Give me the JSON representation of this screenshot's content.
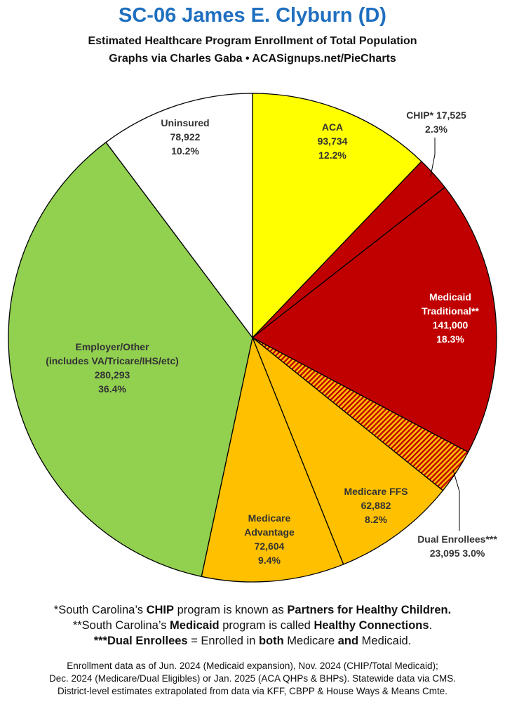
{
  "header": {
    "title": "SC-06 James E. Clyburn (D)",
    "subtitle1": "Estimated Healthcare Program Enrollment of Total Population",
    "subtitle2": "Graphs via Charles Gaba  •  ACASignups.net/PieCharts"
  },
  "chart_data": {
    "type": "pie",
    "title": "SC-06 James E. Clyburn (D)",
    "slices": [
      {
        "label": "ACA",
        "value": 93734,
        "percent": "12.2%",
        "value_text": "93,734",
        "color": "#ffff00",
        "label_color": "#333333"
      },
      {
        "label": "CHIP* 17,525",
        "value": 17525,
        "percent": "2.3%",
        "value_text": "17,525",
        "color": "#c00000",
        "label_color": "#333333"
      },
      {
        "label": "Medicaid Traditional**",
        "value": 141000,
        "percent": "18.3%",
        "value_text": "141,000",
        "color": "#c00000",
        "label_color": "#ffffff"
      },
      {
        "label": "Dual Enrollees***",
        "value": 23095,
        "percent": "3.0%",
        "value_text": "23,095",
        "color": "hatched",
        "label_color": "#333333"
      },
      {
        "label": "Medicare FFS",
        "value": 62882,
        "percent": "8.2%",
        "value_text": "62,882",
        "color": "#ffc000",
        "label_color": "#333333"
      },
      {
        "label": "Medicare Advantage",
        "value": 72604,
        "percent": "9.4%",
        "value_text": "72,604",
        "color": "#ffc000",
        "label_color": "#333333"
      },
      {
        "label": "Employer/Other (includes VA/Tricare/IHS/etc)",
        "value": 280293,
        "percent": "36.4%",
        "value_text": "280,293",
        "color": "#92d050",
        "label_color": "#333333"
      },
      {
        "label": "Uninsured",
        "value": 78922,
        "percent": "10.2%",
        "value_text": "78,922",
        "color": "#ffffff",
        "label_color": "#333333"
      }
    ],
    "label_lines": {
      "aca": [
        "ACA",
        "93,734",
        "12.2%"
      ],
      "chip": [
        "CHIP* 17,525",
        "2.3%"
      ],
      "medicaid": [
        "Medicaid",
        "Traditional**",
        "141,000",
        "18.3%"
      ],
      "dual": [
        "Dual Enrollees***",
        "23,095 3.0%"
      ],
      "ffs": [
        "Medicare FFS",
        "62,882",
        "8.2%"
      ],
      "adv": [
        "Medicare",
        "Advantage",
        "72,604",
        "9.4%"
      ],
      "emp": [
        "Employer/Other",
        "(includes VA/Tricare/IHS/etc)",
        "280,293",
        "36.4%"
      ],
      "unins": [
        "Uninsured",
        "78,922",
        "10.2%"
      ]
    }
  },
  "notes": {
    "n1_a": "*South Carolina’s ",
    "n1_b": "CHIP",
    "n1_c": " program is known as ",
    "n1_d": "Partners for Healthy Children.",
    "n2_a": "**South Carolina’s ",
    "n2_b": "Medicaid",
    "n2_c": " program is called ",
    "n2_d": "Healthy Connections",
    "n2_e": ".",
    "n3_a": "***Dual Enrollees",
    "n3_b": " = Enrolled in ",
    "n3_c": "both",
    "n3_d": " Medicare ",
    "n3_e": "and",
    "n3_f": " Medicaid."
  },
  "source": {
    "line1": "Enrollment data as of Jun. 2024 (Medicaid expansion), Nov. 2024 (CHIP/Total Medicaid);",
    "line2": "Dec. 2024 (Medicare/Dual Eligibles) or Jan. 2025 (ACA QHPs & BHPs). Statewide data via CMS.",
    "line3": "District-level estimates extrapolated from data via KFF, CBPP & House Ways & Means Cmte."
  }
}
